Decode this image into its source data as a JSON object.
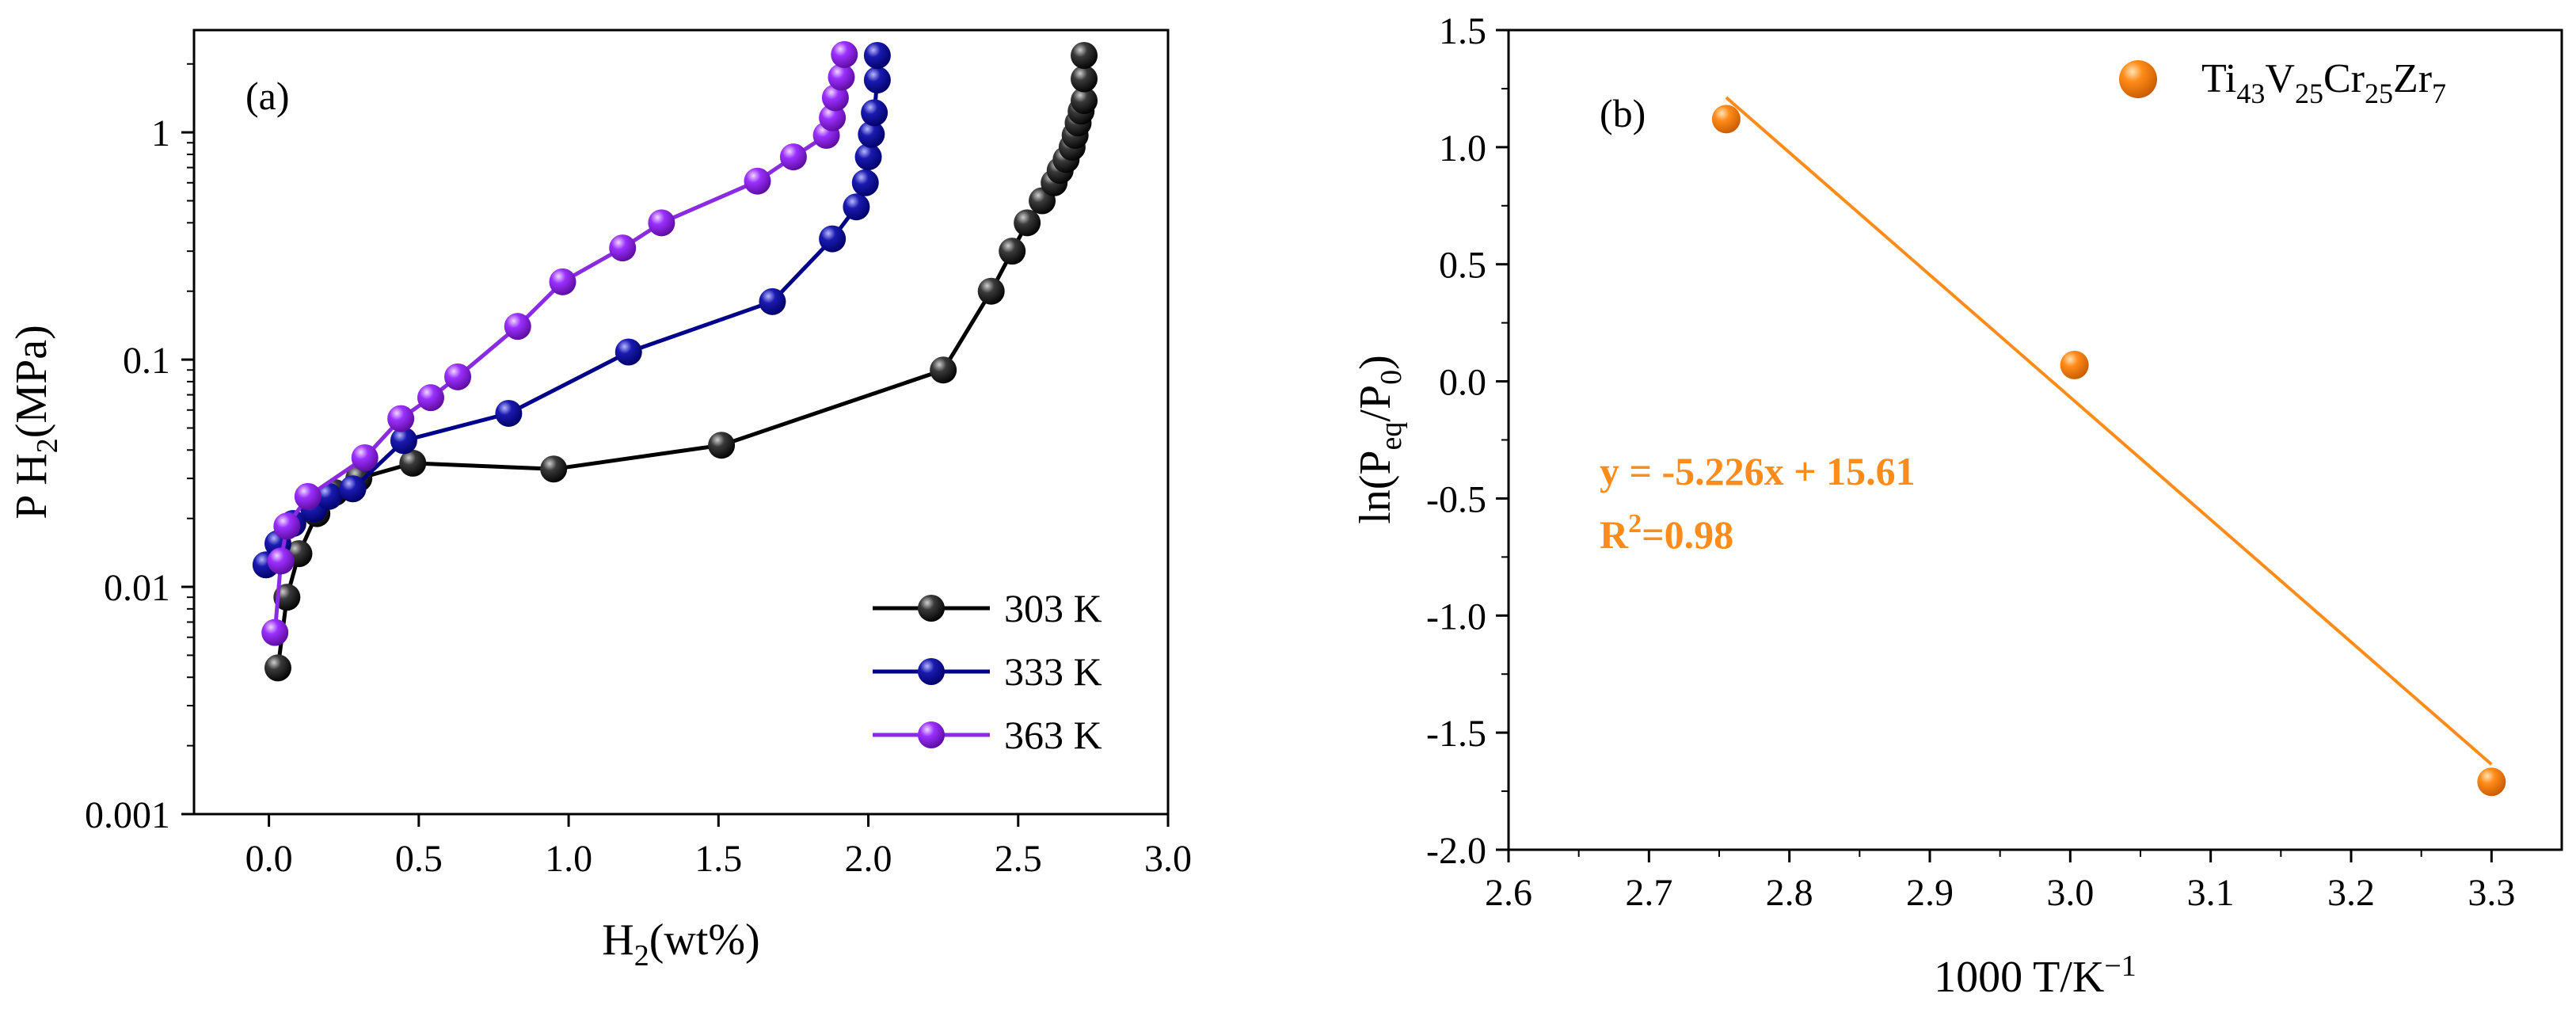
{
  "chart_data": [
    {
      "panel_label": "(a)",
      "type": "line",
      "xlabel": {
        "main": "H",
        "sub": "2",
        "rest": "(wt%)"
      },
      "ylabel": {
        "main": "P H",
        "sub": "2",
        "rest": "(MPa)"
      },
      "xlim": [
        -0.25,
        3.0
      ],
      "ylim_log10": [
        -3,
        0.45
      ],
      "yscale": "log",
      "xticks": [
        0.0,
        0.5,
        1.0,
        1.5,
        2.0,
        2.5,
        3.0
      ],
      "xtick_labels": [
        "0.0",
        "0.5",
        "1.0",
        "1.5",
        "2.0",
        "2.5",
        "3.0"
      ],
      "yticks": [
        0.001,
        0.01,
        0.1,
        1
      ],
      "ytick_labels": [
        "0.001",
        "0.01",
        "0.1",
        "1"
      ],
      "legend_position": "bottom-right",
      "series": [
        {
          "name": "303 K",
          "color": "#000000",
          "points": [
            [
              0.03,
              0.0044
            ],
            [
              0.06,
              0.009
            ],
            [
              0.1,
              0.014
            ],
            [
              0.16,
              0.021
            ],
            [
              0.22,
              0.026
            ],
            [
              0.3,
              0.03
            ],
            [
              0.48,
              0.035
            ],
            [
              0.95,
              0.033
            ],
            [
              1.51,
              0.042
            ],
            [
              2.25,
              0.09
            ],
            [
              2.41,
              0.2
            ],
            [
              2.48,
              0.3
            ],
            [
              2.53,
              0.4
            ],
            [
              2.58,
              0.5
            ],
            [
              2.62,
              0.6
            ],
            [
              2.64,
              0.68
            ],
            [
              2.66,
              0.76
            ],
            [
              2.68,
              0.86
            ],
            [
              2.69,
              0.97
            ],
            [
              2.7,
              1.1
            ],
            [
              2.71,
              1.24
            ],
            [
              2.72,
              1.38
            ],
            [
              2.72,
              1.72
            ],
            [
              2.72,
              2.18
            ]
          ]
        },
        {
          "name": "333 K",
          "color": "#00008b",
          "points": [
            [
              -0.01,
              0.0125
            ],
            [
              0.03,
              0.0155
            ],
            [
              0.08,
              0.019
            ],
            [
              0.15,
              0.022
            ],
            [
              0.2,
              0.025
            ],
            [
              0.28,
              0.027
            ],
            [
              0.45,
              0.044
            ],
            [
              0.8,
              0.058
            ],
            [
              1.2,
              0.108
            ],
            [
              1.68,
              0.18
            ],
            [
              1.88,
              0.34
            ],
            [
              1.96,
              0.47
            ],
            [
              1.99,
              0.6
            ],
            [
              2.0,
              0.78
            ],
            [
              2.01,
              0.98
            ],
            [
              2.02,
              1.22
            ],
            [
              2.03,
              1.7
            ],
            [
              2.03,
              2.18
            ]
          ]
        },
        {
          "name": "363 K",
          "color": "#8a2be2",
          "points": [
            [
              0.02,
              0.0063
            ],
            [
              0.04,
              0.013
            ],
            [
              0.06,
              0.0185
            ],
            [
              0.13,
              0.025
            ],
            [
              0.32,
              0.037
            ],
            [
              0.44,
              0.055
            ],
            [
              0.54,
              0.068
            ],
            [
              0.63,
              0.084
            ],
            [
              0.83,
              0.14
            ],
            [
              0.98,
              0.22
            ],
            [
              1.18,
              0.31
            ],
            [
              1.31,
              0.4
            ],
            [
              1.63,
              0.61
            ],
            [
              1.75,
              0.78
            ],
            [
              1.86,
              0.97
            ],
            [
              1.88,
              1.16
            ],
            [
              1.89,
              1.42
            ],
            [
              1.91,
              1.75
            ],
            [
              1.92,
              2.2
            ]
          ]
        }
      ]
    },
    {
      "panel_label": "(b)",
      "type": "scatter",
      "xlabel": {
        "main": "1000 T/K",
        "sup": "−1"
      },
      "ylabel": {
        "main": "ln(P",
        "sub1": "eq",
        "mid": "/P",
        "sub2": "0",
        "rest": ")"
      },
      "xlim": [
        2.6,
        3.35
      ],
      "ylim": [
        -2.0,
        1.5
      ],
      "xticks": [
        2.6,
        2.7,
        2.8,
        2.9,
        3.0,
        3.1,
        3.2,
        3.3
      ],
      "xtick_labels": [
        "2.6",
        "2.7",
        "2.8",
        "2.9",
        "3.0",
        "3.1",
        "3.2",
        "3.3"
      ],
      "yticks": [
        -2.0,
        -1.5,
        -1.0,
        -0.5,
        0.0,
        0.5,
        1.0,
        1.5
      ],
      "ytick_labels": [
        "-2.0",
        "-1.5",
        "-1.0",
        "-0.5",
        "0.0",
        "0.5",
        "1.0",
        "1.5"
      ],
      "color": "#ff8c1a",
      "legend": {
        "parts": [
          [
            "Ti",
            ""
          ],
          [
            "43",
            "sub"
          ],
          [
            "V",
            ""
          ],
          [
            "25",
            "sub"
          ],
          [
            "Cr",
            ""
          ],
          [
            "25",
            "sub"
          ],
          [
            "Zr",
            ""
          ],
          [
            "7",
            "sub"
          ]
        ]
      },
      "points": [
        [
          2.755,
          1.12
        ],
        [
          3.003,
          0.07
        ],
        [
          3.3,
          -1.71
        ]
      ],
      "fit": {
        "slope": -5.226,
        "intercept": 15.61,
        "x_range": [
          2.755,
          3.3
        ]
      },
      "equation_text": "y = -5.226x + 15.61",
      "r2_label": {
        "main": "R",
        "sup": "2",
        "rest": "=0.98"
      }
    }
  ]
}
